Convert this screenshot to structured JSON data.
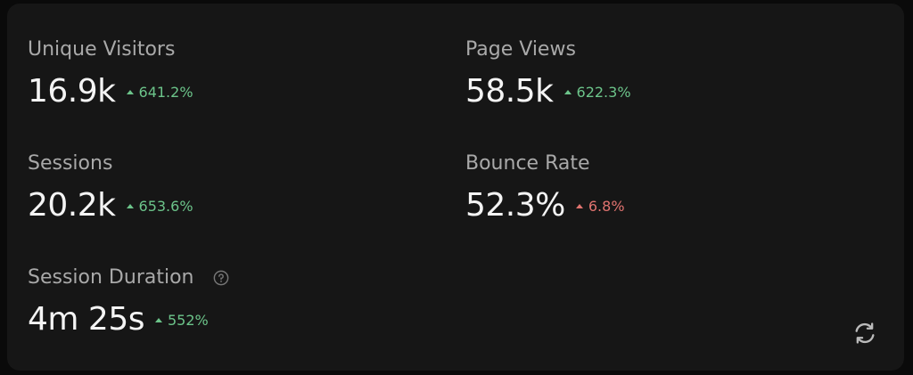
{
  "metrics": [
    {
      "label": "Unique Visitors",
      "value": "16.9k",
      "change": "641.2%",
      "color": "#6cc48a"
    },
    {
      "label": "Page Views",
      "value": "58.5k",
      "change": "622.3%",
      "color": "#6cc48a"
    },
    {
      "label": "Sessions",
      "value": "20.2k",
      "change": "653.6%",
      "color": "#6cc48a"
    },
    {
      "label": "Bounce Rate",
      "value": "52.3%",
      "change": "6.8%",
      "color": "#e0736f"
    },
    {
      "label": "Session Duration",
      "value": "4m 25s",
      "change": "552%",
      "color": "#6cc48a"
    }
  ]
}
